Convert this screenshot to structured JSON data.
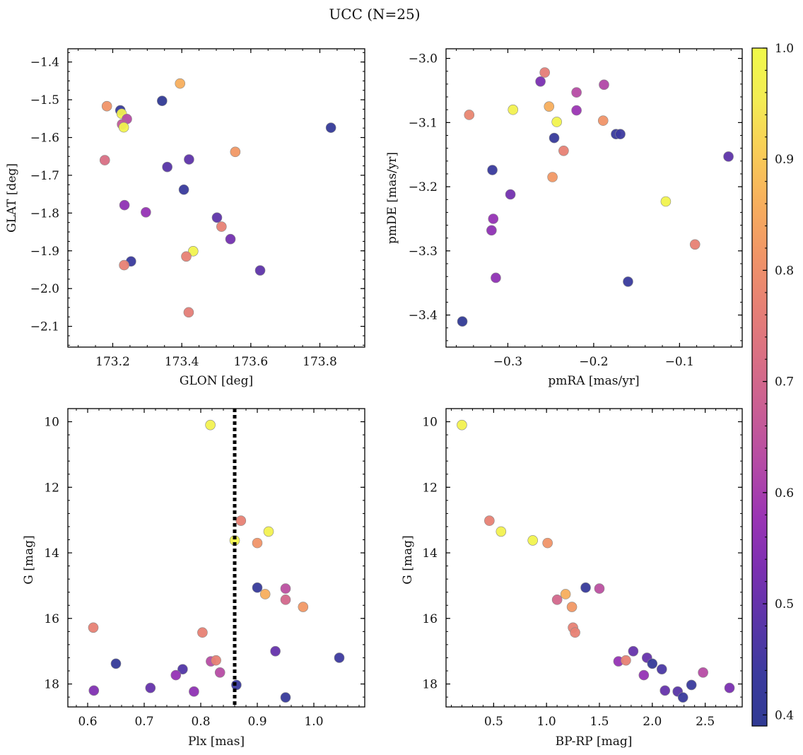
{
  "title": "UCC (N=25)",
  "colors": {
    "cmap": [
      "#303a93",
      "#3b3a9e",
      "#5a35a8",
      "#7b2fb1",
      "#9a34b4",
      "#b44aa6",
      "#c85d95",
      "#d86e85",
      "#e67f75",
      "#f09467",
      "#f7ae5d",
      "#f9cc57",
      "#f3ec54",
      "#f0f94a"
    ],
    "edge": "#888888",
    "dashed_line": "#000000"
  },
  "colorbar": {
    "vmin": 0.39,
    "vmax": 1.0,
    "ticks": [
      "0.4",
      "0.5",
      "0.6",
      "0.7",
      "0.8",
      "0.9",
      "1.0"
    ]
  },
  "chart_data": [
    {
      "id": "glon-glat",
      "type": "scatter",
      "xlabel": "GLON [deg]",
      "ylabel": "GLAT [deg]",
      "xlim": [
        173.07,
        173.93
      ],
      "ylim": [
        -2.155,
        -1.365
      ],
      "invert_y": false,
      "xticks": [
        173.2,
        173.4,
        173.6,
        173.8
      ],
      "xtick_labels": [
        "173.2",
        "173.4",
        "173.6",
        "173.8"
      ],
      "yticks": [
        -1.4,
        -1.5,
        -1.6,
        -1.7,
        -1.8,
        -1.9,
        -2.0,
        -2.1
      ],
      "ytick_labels": [
        "−1.4",
        "−1.5",
        "−1.6",
        "−1.7",
        "−1.8",
        "−1.9",
        "−2.0",
        "−2.1"
      ],
      "x_minor": 0.05,
      "y_minor": 0.025,
      "points": [
        {
          "x": 173.395,
          "y": -1.457,
          "c": 0.86
        },
        {
          "x": 173.183,
          "y": -1.517,
          "c": 0.81
        },
        {
          "x": 173.343,
          "y": -1.503,
          "c": 0.4
        },
        {
          "x": 173.222,
          "y": -1.528,
          "c": 0.42
        },
        {
          "x": 173.226,
          "y": -1.537,
          "c": 0.97
        },
        {
          "x": 173.241,
          "y": -1.551,
          "c": 0.63
        },
        {
          "x": 173.227,
          "y": -1.565,
          "c": 0.66
        },
        {
          "x": 173.232,
          "y": -1.573,
          "c": 0.98
        },
        {
          "x": 173.832,
          "y": -1.574,
          "c": 0.41
        },
        {
          "x": 173.555,
          "y": -1.638,
          "c": 0.82
        },
        {
          "x": 173.177,
          "y": -1.66,
          "c": 0.72
        },
        {
          "x": 173.421,
          "y": -1.658,
          "c": 0.49
        },
        {
          "x": 173.358,
          "y": -1.678,
          "c": 0.48
        },
        {
          "x": 173.406,
          "y": -1.738,
          "c": 0.43
        },
        {
          "x": 173.234,
          "y": -1.779,
          "c": 0.56
        },
        {
          "x": 173.296,
          "y": -1.798,
          "c": 0.57
        },
        {
          "x": 173.502,
          "y": -1.812,
          "c": 0.49
        },
        {
          "x": 173.515,
          "y": -1.836,
          "c": 0.77
        },
        {
          "x": 173.541,
          "y": -1.869,
          "c": 0.52
        },
        {
          "x": 173.433,
          "y": -1.901,
          "c": 0.98
        },
        {
          "x": 173.413,
          "y": -1.915,
          "c": 0.77
        },
        {
          "x": 173.253,
          "y": -1.928,
          "c": 0.43
        },
        {
          "x": 173.233,
          "y": -1.938,
          "c": 0.77
        },
        {
          "x": 173.627,
          "y": -1.952,
          "c": 0.49
        },
        {
          "x": 173.42,
          "y": -2.063,
          "c": 0.76
        }
      ]
    },
    {
      "id": "pmra-pmde",
      "type": "scatter",
      "xlabel": "pmRA [mas/yr]",
      "ylabel": "pmDE [mas/yr]",
      "xlim": [
        -0.372,
        -0.027
      ],
      "ylim": [
        -3.45,
        -2.985
      ],
      "invert_y": false,
      "xticks": [
        -0.3,
        -0.2,
        -0.1
      ],
      "xtick_labels": [
        "−0.3",
        "−0.2",
        "−0.1"
      ],
      "yticks": [
        -3.0,
        -3.1,
        -3.2,
        -3.3,
        -3.4
      ],
      "ytick_labels": [
        "−3.0",
        "−3.1",
        "−3.2",
        "−3.3",
        "−3.4"
      ],
      "x_minor": 0.02,
      "y_minor": 0.02,
      "points": [
        {
          "x": -0.257,
          "y": -3.022,
          "c": 0.76
        },
        {
          "x": -0.262,
          "y": -3.036,
          "c": 0.53
        },
        {
          "x": -0.188,
          "y": -3.041,
          "c": 0.62
        },
        {
          "x": -0.22,
          "y": -3.053,
          "c": 0.63
        },
        {
          "x": -0.252,
          "y": -3.075,
          "c": 0.86
        },
        {
          "x": -0.294,
          "y": -3.08,
          "c": 0.97
        },
        {
          "x": -0.22,
          "y": -3.081,
          "c": 0.58
        },
        {
          "x": -0.345,
          "y": -3.088,
          "c": 0.78
        },
        {
          "x": -0.189,
          "y": -3.097,
          "c": 0.81
        },
        {
          "x": -0.243,
          "y": -3.099,
          "c": 0.98
        },
        {
          "x": -0.174,
          "y": -3.118,
          "c": 0.43
        },
        {
          "x": -0.169,
          "y": -3.118,
          "c": 0.44
        },
        {
          "x": -0.246,
          "y": -3.124,
          "c": 0.42
        },
        {
          "x": -0.235,
          "y": -3.144,
          "c": 0.77
        },
        {
          "x": -0.043,
          "y": -3.153,
          "c": 0.49
        },
        {
          "x": -0.318,
          "y": -3.174,
          "c": 0.43
        },
        {
          "x": -0.248,
          "y": -3.185,
          "c": 0.82
        },
        {
          "x": -0.297,
          "y": -3.212,
          "c": 0.52
        },
        {
          "x": -0.116,
          "y": -3.223,
          "c": 0.98
        },
        {
          "x": -0.317,
          "y": -3.25,
          "c": 0.57
        },
        {
          "x": -0.319,
          "y": -3.268,
          "c": 0.56
        },
        {
          "x": -0.082,
          "y": -3.29,
          "c": 0.77
        },
        {
          "x": -0.314,
          "y": -3.342,
          "c": 0.56
        },
        {
          "x": -0.16,
          "y": -3.348,
          "c": 0.43
        },
        {
          "x": -0.353,
          "y": -3.41,
          "c": 0.4
        }
      ]
    },
    {
      "id": "plx-g",
      "type": "scatter",
      "xlabel": "Plx [mas]",
      "ylabel": "G [mag]",
      "xlim": [
        0.565,
        1.09
      ],
      "ylim": [
        9.6,
        18.7
      ],
      "invert_y": true,
      "xticks": [
        0.6,
        0.7,
        0.8,
        0.9,
        1.0
      ],
      "xtick_labels": [
        "0.6",
        "0.7",
        "0.8",
        "0.9",
        "1.0"
      ],
      "yticks": [
        10,
        12,
        14,
        16,
        18
      ],
      "ytick_labels": [
        "10",
        "12",
        "14",
        "16",
        "18"
      ],
      "x_minor": 0.02,
      "y_minor": 0.4,
      "vline": 0.86,
      "points": [
        {
          "x": 0.817,
          "y": 10.1,
          "c": 0.97
        },
        {
          "x": 0.871,
          "y": 13.02,
          "c": 0.77
        },
        {
          "x": 0.92,
          "y": 13.35,
          "c": 0.97
        },
        {
          "x": 0.86,
          "y": 13.62,
          "c": 0.98
        },
        {
          "x": 0.9,
          "y": 13.7,
          "c": 0.81
        },
        {
          "x": 0.9,
          "y": 15.06,
          "c": 0.42
        },
        {
          "x": 0.95,
          "y": 15.09,
          "c": 0.64
        },
        {
          "x": 0.914,
          "y": 15.26,
          "c": 0.86
        },
        {
          "x": 0.95,
          "y": 15.43,
          "c": 0.7
        },
        {
          "x": 0.981,
          "y": 15.65,
          "c": 0.82
        },
        {
          "x": 0.61,
          "y": 16.28,
          "c": 0.77
        },
        {
          "x": 0.803,
          "y": 16.43,
          "c": 0.77
        },
        {
          "x": 0.932,
          "y": 17.0,
          "c": 0.5
        },
        {
          "x": 1.045,
          "y": 17.2,
          "c": 0.44
        },
        {
          "x": 0.818,
          "y": 17.31,
          "c": 0.63
        },
        {
          "x": 0.827,
          "y": 17.28,
          "c": 0.77
        },
        {
          "x": 0.65,
          "y": 17.38,
          "c": 0.41
        },
        {
          "x": 0.768,
          "y": 17.55,
          "c": 0.47
        },
        {
          "x": 0.834,
          "y": 17.65,
          "c": 0.63
        },
        {
          "x": 0.756,
          "y": 17.73,
          "c": 0.57
        },
        {
          "x": 0.863,
          "y": 18.03,
          "c": 0.43
        },
        {
          "x": 0.711,
          "y": 18.12,
          "c": 0.5
        },
        {
          "x": 0.611,
          "y": 18.2,
          "c": 0.54
        },
        {
          "x": 0.788,
          "y": 18.23,
          "c": 0.56
        },
        {
          "x": 0.95,
          "y": 18.41,
          "c": 0.42
        }
      ]
    },
    {
      "id": "bprp-g",
      "type": "scatter",
      "xlabel": "BP-RP [mag]",
      "ylabel": "G [mag]",
      "xlim": [
        0.05,
        2.85
      ],
      "ylim": [
        9.6,
        18.7
      ],
      "invert_y": true,
      "xticks": [
        0.5,
        1.0,
        1.5,
        2.0,
        2.5
      ],
      "xtick_labels": [
        "0.5",
        "1.0",
        "1.5",
        "2.0",
        "2.5"
      ],
      "yticks": [
        10,
        12,
        14,
        16,
        18
      ],
      "ytick_labels": [
        "10",
        "12",
        "14",
        "16",
        "18"
      ],
      "x_minor": 0.1,
      "y_minor": 0.4,
      "points": [
        {
          "x": 0.2,
          "y": 10.1,
          "c": 0.97
        },
        {
          "x": 0.46,
          "y": 13.02,
          "c": 0.77
        },
        {
          "x": 0.57,
          "y": 13.35,
          "c": 0.97
        },
        {
          "x": 0.87,
          "y": 13.62,
          "c": 0.98
        },
        {
          "x": 1.01,
          "y": 13.7,
          "c": 0.81
        },
        {
          "x": 1.37,
          "y": 15.06,
          "c": 0.42
        },
        {
          "x": 1.5,
          "y": 15.09,
          "c": 0.64
        },
        {
          "x": 1.18,
          "y": 15.26,
          "c": 0.86
        },
        {
          "x": 1.1,
          "y": 15.43,
          "c": 0.7
        },
        {
          "x": 1.24,
          "y": 15.65,
          "c": 0.82
        },
        {
          "x": 1.25,
          "y": 16.28,
          "c": 0.77
        },
        {
          "x": 1.27,
          "y": 16.43,
          "c": 0.77
        },
        {
          "x": 1.82,
          "y": 17.0,
          "c": 0.5
        },
        {
          "x": 1.95,
          "y": 17.2,
          "c": 0.5
        },
        {
          "x": 1.68,
          "y": 17.31,
          "c": 0.57
        },
        {
          "x": 1.75,
          "y": 17.28,
          "c": 0.77
        },
        {
          "x": 2.0,
          "y": 17.38,
          "c": 0.41
        },
        {
          "x": 2.09,
          "y": 17.55,
          "c": 0.46
        },
        {
          "x": 2.48,
          "y": 17.65,
          "c": 0.63
        },
        {
          "x": 1.92,
          "y": 17.73,
          "c": 0.57
        },
        {
          "x": 2.37,
          "y": 18.03,
          "c": 0.43
        },
        {
          "x": 2.73,
          "y": 18.12,
          "c": 0.53
        },
        {
          "x": 2.12,
          "y": 18.2,
          "c": 0.5
        },
        {
          "x": 2.24,
          "y": 18.23,
          "c": 0.48
        },
        {
          "x": 2.29,
          "y": 18.41,
          "c": 0.43
        }
      ]
    }
  ]
}
